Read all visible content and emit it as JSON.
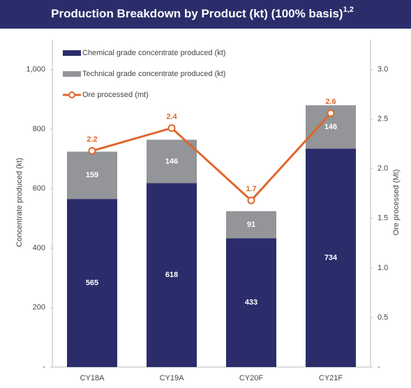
{
  "chart_data": {
    "type": "bar",
    "stacked": true,
    "title": "Production Breakdown by Product (kt) (100% basis)",
    "title_note": "1,2",
    "categories": [
      "CY18A",
      "CY19A",
      "CY20F",
      "CY21F"
    ],
    "series": [
      {
        "name": "Chemical grade concentrate produced (kt)",
        "type": "bar",
        "color": "#2b2d6b",
        "values": [
          565,
          618,
          433,
          734
        ]
      },
      {
        "name": "Technical grade concentrate produced (kt)",
        "type": "bar",
        "color": "#939598",
        "values": [
          159,
          146,
          91,
          146
        ]
      },
      {
        "name": "Ore processed (mt)",
        "type": "line",
        "axis": "y2",
        "color": "#e0662a",
        "values": [
          2.18,
          2.41,
          1.68,
          2.56
        ],
        "value_labels": [
          "2.2",
          "2.4",
          "1.7",
          "2.6"
        ]
      }
    ],
    "ylabel": "Concentrate produced (kt)",
    "y2label": "Ore processed (Mt)",
    "ylim": [
      0,
      1100
    ],
    "yticks": [
      {
        "value": 0,
        "label": "-"
      },
      200,
      400,
      600,
      800,
      {
        "value": 1000,
        "label": "1,000"
      }
    ],
    "y2lim": [
      0,
      3.3
    ],
    "y2ticks": [
      {
        "value": 0,
        "label": "-"
      },
      0.5,
      {
        "value": 1,
        "label": "1.0"
      },
      1.5,
      {
        "value": 2,
        "label": "2.0"
      },
      2.5,
      {
        "value": 3,
        "label": "3.0"
      }
    ],
    "legend": "top-left"
  }
}
